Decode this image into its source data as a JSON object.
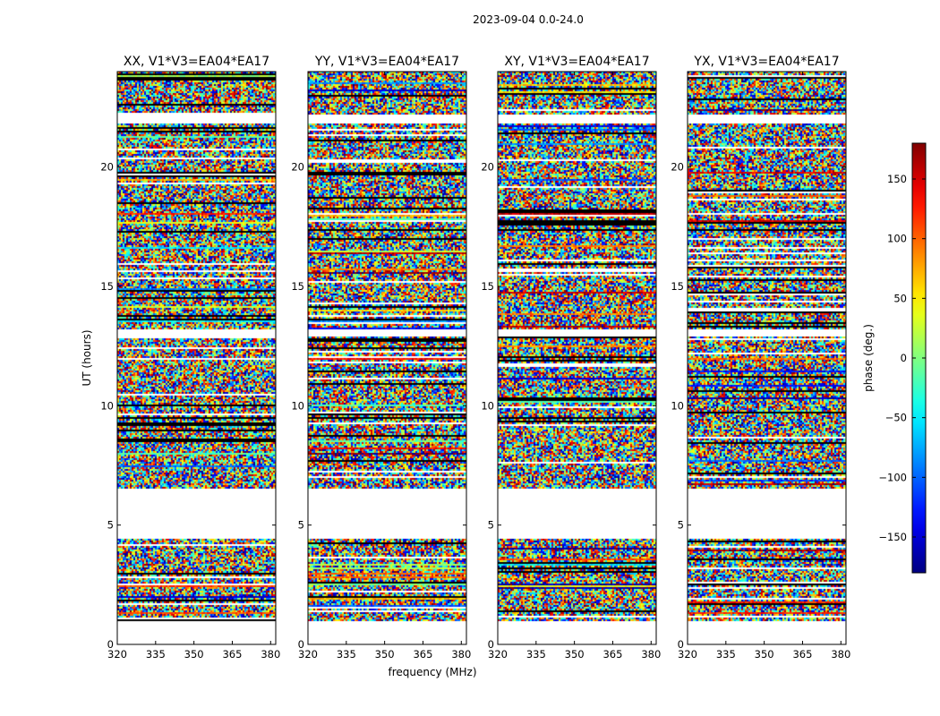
{
  "figure": {
    "suptitle": "2023-09-04 0.0-24.0"
  },
  "chart_data": {
    "type": "heatmap",
    "title": "2023-09-04 0.0-24.0",
    "xlabel": "frequency (MHz)",
    "ylabel": "UT (hours)",
    "xlim": [
      320,
      382
    ],
    "ylim": [
      0,
      24
    ],
    "x_ticks": [
      320,
      335,
      350,
      365,
      380
    ],
    "y_ticks": [
      0,
      5,
      10,
      15,
      20
    ],
    "colorbar": {
      "label": "phase (deg.)",
      "range": [
        -180,
        180
      ],
      "ticks": [
        150,
        100,
        50,
        0,
        -50,
        -100,
        -150
      ],
      "tick_labels": [
        "150",
        "100",
        "50",
        "0",
        "−50",
        "−100",
        "−150"
      ],
      "colormap": "jet"
    },
    "data_time_range_hours": [
      1.0,
      24.0
    ],
    "panels": [
      {
        "name": "XX",
        "title": "XX, V1*V3=EA04*EA17",
        "x_tick_labels": [
          "320",
          "335",
          "350",
          "365",
          "380"
        ],
        "y_tick_labels": [
          "0",
          "5",
          "10",
          "15",
          "20"
        ],
        "blank_rows_hours": [
          0.0,
          0.9,
          4.5,
          6.6,
          12.9,
          13.2,
          21.9,
          22.2
        ]
      },
      {
        "name": "YY",
        "title": "YY, V1*V3=EA04*EA17",
        "x_tick_labels": [
          "320",
          "335",
          "350",
          "365",
          "380"
        ],
        "y_tick_labels": [
          "0",
          "5",
          "10",
          "15",
          "20"
        ],
        "blank_rows_hours": [
          0.0,
          0.9,
          4.5,
          6.6,
          12.9,
          13.2,
          21.9,
          22.2
        ]
      },
      {
        "name": "XY",
        "title": "XY, V1*V3=EA04*EA17",
        "x_tick_labels": [
          "320",
          "335",
          "350",
          "365",
          "380"
        ],
        "y_tick_labels": [
          "0",
          "5",
          "10",
          "15",
          "20"
        ],
        "blank_rows_hours": [
          0.0,
          0.9,
          4.5,
          6.6,
          12.9,
          13.2,
          21.9,
          22.2
        ]
      },
      {
        "name": "YX",
        "title": "YX, V1*V3=EA04*EA17",
        "x_tick_labels": [
          "320",
          "335",
          "350",
          "365",
          "380"
        ],
        "y_tick_labels": [
          "0",
          "5",
          "10",
          "15",
          "20"
        ],
        "blank_rows_hours": [
          0.0,
          0.9,
          4.5,
          6.6,
          12.9,
          13.2,
          21.9,
          22.2
        ]
      }
    ]
  }
}
